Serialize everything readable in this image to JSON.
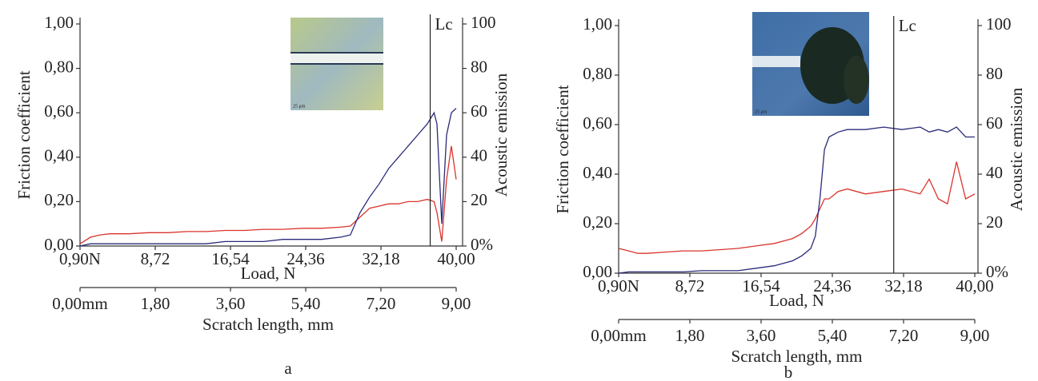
{
  "chart_data": [
    {
      "type": "line",
      "label": "a",
      "xlabel": "Load, N",
      "ylabel": "Friction coefficient",
      "y2label": "Acoustic emission",
      "x2label": "Scratch length, mm",
      "xlim": [
        0.9,
        40
      ],
      "xticks": [
        {
          "value": 0.9,
          "label": "0,90N"
        },
        {
          "value": 8.72,
          "label": "8,72"
        },
        {
          "value": 16.54,
          "label": "16,54"
        },
        {
          "value": 24.36,
          "label": "24,36"
        },
        {
          "value": 32.18,
          "label": "32,18"
        },
        {
          "value": 40,
          "label": "40,00"
        }
      ],
      "ylim": [
        0,
        1
      ],
      "yticks": [
        {
          "value": 0,
          "label": "0,00"
        },
        {
          "value": 0.2,
          "label": "0,20"
        },
        {
          "value": 0.4,
          "label": "0,40"
        },
        {
          "value": 0.6,
          "label": "0,60"
        },
        {
          "value": 0.8,
          "label": "0,80"
        },
        {
          "value": 1,
          "label": "1,00"
        }
      ],
      "y2lim": [
        0,
        100
      ],
      "y2ticks": [
        {
          "value": 0,
          "label": "0%"
        },
        20,
        40,
        60,
        80,
        100
      ],
      "x2lim": [
        0,
        9
      ],
      "x2ticks": [
        {
          "value": 0,
          "label": "0,00mm"
        },
        {
          "value": 1.8,
          "label": "1,80"
        },
        {
          "value": 3.6,
          "label": "3,60"
        },
        {
          "value": 5.4,
          "label": "5,40"
        },
        {
          "value": 7.2,
          "label": "7,20"
        },
        {
          "value": 9,
          "label": "9,00"
        }
      ],
      "annotation": {
        "text": "Lc",
        "x": 37.3
      },
      "inset_scale": "25 μm",
      "x": [
        0.9,
        2,
        3,
        4,
        5,
        6,
        8,
        10,
        12,
        14,
        16,
        18,
        20,
        22,
        24,
        26,
        28,
        29,
        30,
        31,
        32,
        33,
        34,
        35,
        36,
        37,
        37.7,
        38,
        38.5,
        39,
        39.5,
        40
      ],
      "series": [
        {
          "color": "#d9342b",
          "values": [
            0.01,
            0.04,
            0.05,
            0.055,
            0.055,
            0.055,
            0.06,
            0.06,
            0.065,
            0.065,
            0.07,
            0.07,
            0.075,
            0.075,
            0.08,
            0.08,
            0.085,
            0.09,
            0.13,
            0.17,
            0.18,
            0.19,
            0.19,
            0.2,
            0.2,
            0.21,
            0.2,
            0.15,
            0.02,
            0.3,
            0.45,
            0.3
          ]
        },
        {
          "color": "#2a2a7a",
          "axis": "y2",
          "values": [
            0,
            1,
            1,
            1,
            1,
            1,
            1,
            1,
            1,
            1,
            2,
            2,
            2,
            3,
            3,
            3,
            4,
            5,
            15,
            22,
            28,
            35,
            40,
            45,
            50,
            55,
            60,
            55,
            10,
            50,
            60,
            62
          ]
        }
      ]
    },
    {
      "type": "line",
      "label": "b",
      "xlabel": "Load, N",
      "ylabel": "Friction coefficient",
      "y2label": "Acoustic emission",
      "x2label": "Scratch length, mm",
      "xlim": [
        0.9,
        40
      ],
      "xticks": [
        {
          "value": 0.9,
          "label": "0,90N"
        },
        {
          "value": 8.72,
          "label": "8,72"
        },
        {
          "value": 16.54,
          "label": "16,54"
        },
        {
          "value": 24.36,
          "label": "24,36"
        },
        {
          "value": 32.18,
          "label": "32,18"
        },
        {
          "value": 40,
          "label": "40,00"
        }
      ],
      "ylim": [
        0,
        1
      ],
      "yticks": [
        {
          "value": 0,
          "label": "0,00"
        },
        {
          "value": 0.2,
          "label": "0,20"
        },
        {
          "value": 0.4,
          "label": "0,40"
        },
        {
          "value": 0.6,
          "label": "0,60"
        },
        {
          "value": 0.8,
          "label": "0,80"
        },
        {
          "value": 1,
          "label": "1,00"
        }
      ],
      "y2lim": [
        0,
        100
      ],
      "y2ticks": [
        {
          "value": 0,
          "label": "0%"
        },
        20,
        40,
        60,
        80,
        100
      ],
      "x2lim": [
        0,
        9
      ],
      "x2ticks": [
        {
          "value": 0,
          "label": "0,00mm"
        },
        {
          "value": 1.8,
          "label": "1,80"
        },
        {
          "value": 3.6,
          "label": "3,60"
        },
        {
          "value": 5.4,
          "label": "5,40"
        },
        {
          "value": 7.2,
          "label": "7,20"
        },
        {
          "value": 9,
          "label": "9,00"
        }
      ],
      "annotation": {
        "text": "Lc",
        "x": 31.1
      },
      "inset_scale": "25 μm",
      "x": [
        0.9,
        2,
        3,
        4,
        6,
        8,
        10,
        12,
        14,
        16,
        18,
        19,
        20,
        21,
        22,
        22.5,
        23,
        23.5,
        24,
        25,
        26,
        28,
        30,
        32,
        34,
        35,
        36,
        37,
        38,
        39,
        40
      ],
      "series": [
        {
          "color": "#d9342b",
          "values": [
            0.1,
            0.09,
            0.08,
            0.08,
            0.085,
            0.09,
            0.09,
            0.095,
            0.1,
            0.11,
            0.12,
            0.13,
            0.14,
            0.16,
            0.19,
            0.22,
            0.26,
            0.3,
            0.3,
            0.33,
            0.34,
            0.32,
            0.33,
            0.34,
            0.32,
            0.38,
            0.3,
            0.28,
            0.45,
            0.3,
            0.32
          ]
        },
        {
          "color": "#2a2a7a",
          "axis": "y2",
          "values": [
            0,
            0.5,
            0.5,
            0.5,
            0.5,
            0.5,
            1,
            1,
            1,
            2,
            3,
            4,
            5,
            7,
            10,
            15,
            30,
            50,
            55,
            57,
            58,
            58,
            59,
            58,
            59,
            57,
            58,
            57,
            59,
            55,
            55
          ]
        }
      ]
    }
  ]
}
